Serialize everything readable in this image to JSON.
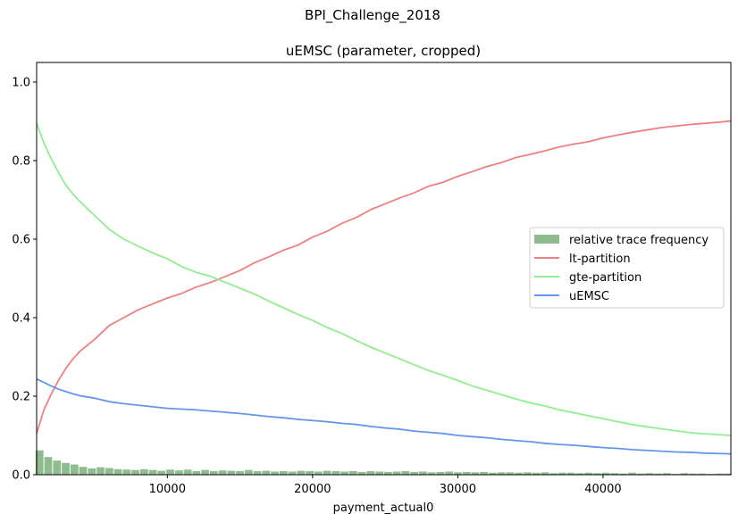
{
  "figure": {
    "suptitle": "BPI_Challenge_2018"
  },
  "chart_data": {
    "type": "line",
    "title": "uEMSC (parameter, cropped)",
    "xlabel": "payment_actual0",
    "ylabel": "",
    "xlim": [
      1000,
      48800
    ],
    "ylim": [
      0,
      1.05
    ],
    "xticks": [
      10000,
      20000,
      30000,
      40000
    ],
    "xtick_labels": [
      "10000",
      "20000",
      "30000",
      "40000"
    ],
    "yticks": [
      0.0,
      0.2,
      0.4,
      0.6,
      0.8,
      1.0
    ],
    "ytick_labels": [
      "0.0",
      "0.2",
      "0.4",
      "0.6",
      "0.8",
      "1.0"
    ],
    "grid": false,
    "legend_position": "center-right",
    "histogram": {
      "name": "relative trace frequency",
      "color": "#8fbc8f",
      "bin_width": 600,
      "x": [
        1200,
        1800,
        2400,
        3000,
        3600,
        4200,
        4800,
        5400,
        6000,
        6600,
        7200,
        7800,
        8400,
        9000,
        9600,
        10200,
        10800,
        11400,
        12000,
        12600,
        13200,
        13800,
        14400,
        15000,
        15600,
        16200,
        16800,
        17400,
        18000,
        18600,
        19200,
        19800,
        20400,
        21000,
        21600,
        22200,
        22800,
        23400,
        24000,
        24600,
        25200,
        25800,
        26400,
        27000,
        27600,
        28200,
        28800,
        29400,
        30000,
        30600,
        31200,
        31800,
        32400,
        33000,
        33600,
        34200,
        34800,
        35400,
        36000,
        36600,
        37200,
        37800,
        38400,
        39000,
        39600,
        40200,
        40800,
        41400,
        42000,
        42600,
        43200,
        43800,
        44400,
        45000,
        45600,
        46200,
        46800,
        47400,
        48000,
        48600
      ],
      "values": [
        0.062,
        0.045,
        0.036,
        0.03,
        0.026,
        0.02,
        0.016,
        0.019,
        0.017,
        0.014,
        0.013,
        0.012,
        0.014,
        0.012,
        0.01,
        0.013,
        0.011,
        0.013,
        0.009,
        0.012,
        0.009,
        0.011,
        0.01,
        0.009,
        0.012,
        0.009,
        0.01,
        0.008,
        0.009,
        0.008,
        0.01,
        0.009,
        0.008,
        0.01,
        0.009,
        0.008,
        0.009,
        0.007,
        0.009,
        0.008,
        0.007,
        0.008,
        0.009,
        0.007,
        0.008,
        0.006,
        0.007,
        0.008,
        0.006,
        0.007,
        0.006,
        0.007,
        0.005,
        0.006,
        0.006,
        0.005,
        0.006,
        0.005,
        0.006,
        0.004,
        0.005,
        0.005,
        0.004,
        0.005,
        0.004,
        0.005,
        0.004,
        0.003,
        0.005,
        0.003,
        0.004,
        0.003,
        0.004,
        0.002,
        0.004,
        0.003,
        0.003,
        0.002,
        0.003,
        0.003
      ]
    },
    "series": [
      {
        "name": "lt-partition",
        "color": "#f08080",
        "x": [
          1000,
          1500,
          2000,
          2500,
          3000,
          3500,
          4000,
          5000,
          6000,
          7000,
          8000,
          9000,
          10000,
          11000,
          12000,
          13000,
          14000,
          15000,
          16000,
          17000,
          18000,
          19000,
          20000,
          21000,
          22000,
          23000,
          24000,
          25000,
          26000,
          27000,
          28000,
          29000,
          30000,
          31000,
          32000,
          33000,
          34000,
          35000,
          36000,
          37000,
          38000,
          39000,
          40000,
          41000,
          42000,
          43000,
          44000,
          45000,
          46000,
          47000,
          48000,
          48800
        ],
        "values": [
          0.105,
          0.165,
          0.205,
          0.24,
          0.27,
          0.295,
          0.315,
          0.345,
          0.38,
          0.4,
          0.42,
          0.435,
          0.45,
          0.462,
          0.478,
          0.49,
          0.505,
          0.52,
          0.54,
          0.555,
          0.572,
          0.585,
          0.605,
          0.62,
          0.64,
          0.655,
          0.675,
          0.69,
          0.705,
          0.718,
          0.735,
          0.745,
          0.76,
          0.772,
          0.785,
          0.795,
          0.808,
          0.816,
          0.825,
          0.835,
          0.842,
          0.848,
          0.858,
          0.865,
          0.872,
          0.878,
          0.884,
          0.888,
          0.892,
          0.895,
          0.898,
          0.901
        ]
      },
      {
        "name": "gte-partition",
        "color": "#90ee90",
        "x": [
          1000,
          1500,
          2000,
          2500,
          3000,
          3500,
          4000,
          5000,
          6000,
          7000,
          8000,
          9000,
          10000,
          11000,
          12000,
          13000,
          14000,
          15000,
          16000,
          17000,
          18000,
          19000,
          20000,
          21000,
          22000,
          23000,
          24000,
          25000,
          26000,
          27000,
          28000,
          29000,
          30000,
          31000,
          32000,
          33000,
          34000,
          35000,
          36000,
          37000,
          38000,
          39000,
          40000,
          41000,
          42000,
          43000,
          44000,
          45000,
          46000,
          47000,
          48000,
          48800
        ],
        "values": [
          0.895,
          0.845,
          0.805,
          0.77,
          0.738,
          0.715,
          0.695,
          0.66,
          0.625,
          0.6,
          0.582,
          0.565,
          0.55,
          0.53,
          0.515,
          0.505,
          0.49,
          0.475,
          0.46,
          0.442,
          0.425,
          0.408,
          0.393,
          0.375,
          0.36,
          0.342,
          0.325,
          0.31,
          0.295,
          0.28,
          0.265,
          0.253,
          0.24,
          0.226,
          0.215,
          0.204,
          0.193,
          0.183,
          0.175,
          0.165,
          0.158,
          0.15,
          0.143,
          0.135,
          0.128,
          0.122,
          0.117,
          0.112,
          0.107,
          0.104,
          0.102,
          0.1
        ]
      },
      {
        "name": "uEMSC",
        "color": "#6495ed",
        "x": [
          1000,
          1500,
          2000,
          2500,
          3000,
          3500,
          4000,
          5000,
          6000,
          7000,
          8000,
          9000,
          10000,
          11000,
          12000,
          13000,
          14000,
          15000,
          16000,
          17000,
          18000,
          19000,
          20000,
          21000,
          22000,
          23000,
          24000,
          25000,
          26000,
          27000,
          28000,
          29000,
          30000,
          31000,
          32000,
          33000,
          34000,
          35000,
          36000,
          37000,
          38000,
          39000,
          40000,
          41000,
          42000,
          43000,
          44000,
          45000,
          46000,
          47000,
          48000,
          48800
        ],
        "values": [
          0.244,
          0.235,
          0.226,
          0.218,
          0.212,
          0.206,
          0.201,
          0.195,
          0.186,
          0.181,
          0.177,
          0.173,
          0.169,
          0.167,
          0.165,
          0.162,
          0.159,
          0.156,
          0.152,
          0.148,
          0.145,
          0.141,
          0.138,
          0.135,
          0.131,
          0.128,
          0.123,
          0.119,
          0.116,
          0.111,
          0.108,
          0.105,
          0.1,
          0.097,
          0.094,
          0.09,
          0.087,
          0.084,
          0.08,
          0.077,
          0.075,
          0.072,
          0.069,
          0.067,
          0.064,
          0.062,
          0.06,
          0.058,
          0.057,
          0.055,
          0.054,
          0.053
        ]
      }
    ]
  }
}
